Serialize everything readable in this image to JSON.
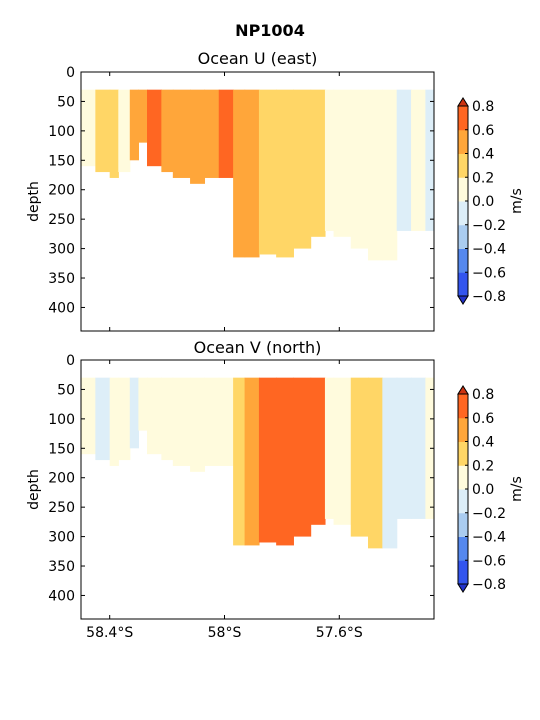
{
  "figure": {
    "suptitle": "NP1004"
  },
  "colors": {
    "levels": [
      -0.8,
      -0.6,
      -0.4,
      -0.2,
      0.0,
      0.2,
      0.4,
      0.6,
      0.8
    ],
    "bands": [
      "#3355ee",
      "#5588ee",
      "#aaccf0",
      "#ddeef8",
      "#fffbdd",
      "#ffd666",
      "#ffa63a",
      "#ff6622"
    ],
    "under": "#2233cc",
    "over": "#cc3311"
  },
  "chart_data": [
    {
      "type": "heatmap",
      "title": "Ocean U (east)",
      "ylabel": "depth",
      "xlabel": "",
      "ylim": [
        440,
        0
      ],
      "yticks": [
        0,
        50,
        100,
        150,
        200,
        250,
        300,
        350,
        400
      ],
      "xlim": [
        -58.5,
        -57.27
      ],
      "xticks": [
        -58.4,
        -58.0,
        -57.6
      ],
      "xtick_labels": [],
      "colorbar": {
        "label": "m/s",
        "ticks": [
          "0.8",
          "0.6",
          "0.4",
          "0.2",
          "0.0",
          "−0.2",
          "−0.4",
          "−0.6",
          "−0.8"
        ]
      },
      "top_depth": 30,
      "cells": [
        {
          "x0": -58.5,
          "x1": -58.45,
          "ymax": 160,
          "v": 0.1
        },
        {
          "x0": -58.45,
          "x1": -58.4,
          "ymax": 170,
          "v": 0.3
        },
        {
          "x0": -58.4,
          "x1": -58.37,
          "ymax": 180,
          "v": 0.3
        },
        {
          "x0": -58.37,
          "x1": -58.33,
          "ymax": 170,
          "v": 0.1
        },
        {
          "x0": -58.33,
          "x1": -58.3,
          "ymax": 150,
          "v": 0.5
        },
        {
          "x0": -58.3,
          "x1": -58.27,
          "ymax": 120,
          "v": 0.5
        },
        {
          "x0": -58.27,
          "x1": -58.22,
          "ymax": 160,
          "v": 0.6
        },
        {
          "x0": -58.22,
          "x1": -58.18,
          "ymax": 170,
          "v": 0.5
        },
        {
          "x0": -58.18,
          "x1": -58.12,
          "ymax": 180,
          "v": 0.5
        },
        {
          "x0": -58.12,
          "x1": -58.07,
          "ymax": 190,
          "v": 0.5
        },
        {
          "x0": -58.07,
          "x1": -58.02,
          "ymax": 180,
          "v": 0.5
        },
        {
          "x0": -58.02,
          "x1": -57.97,
          "ymax": 180,
          "v": 0.6
        },
        {
          "x0": -57.97,
          "x1": -57.93,
          "ymax": 315,
          "v": 0.5
        },
        {
          "x0": -57.93,
          "x1": -57.88,
          "ymax": 315,
          "v": 0.4
        },
        {
          "x0": -57.88,
          "x1": -57.82,
          "ymax": 310,
          "v": 0.3
        },
        {
          "x0": -57.82,
          "x1": -57.76,
          "ymax": 315,
          "v": 0.3
        },
        {
          "x0": -57.76,
          "x1": -57.7,
          "ymax": 300,
          "v": 0.3
        },
        {
          "x0": -57.7,
          "x1": -57.65,
          "ymax": 280,
          "v": 0.3
        },
        {
          "x0": -57.65,
          "x1": -57.62,
          "ymax": 270,
          "v": 0.1
        },
        {
          "x0": -57.62,
          "x1": -57.56,
          "ymax": 280,
          "v": 0.1
        },
        {
          "x0": -57.56,
          "x1": -57.5,
          "ymax": 300,
          "v": 0.1
        },
        {
          "x0": -57.5,
          "x1": -57.45,
          "ymax": 320,
          "v": 0.1
        },
        {
          "x0": -57.45,
          "x1": -57.4,
          "ymax": 320,
          "v": 0.1
        },
        {
          "x0": -57.4,
          "x1": -57.35,
          "ymax": 270,
          "v": -0.1
        },
        {
          "x0": -57.35,
          "x1": -57.3,
          "ymax": 270,
          "v": 0.1
        },
        {
          "x0": -57.3,
          "x1": -57.27,
          "ymax": 270,
          "v": -0.1
        }
      ]
    },
    {
      "type": "heatmap",
      "title": "Ocean V (north)",
      "ylabel": "depth",
      "xlabel": "",
      "ylim": [
        440,
        0
      ],
      "yticks": [
        0,
        50,
        100,
        150,
        200,
        250,
        300,
        350,
        400
      ],
      "xlim": [
        -58.5,
        -57.27
      ],
      "xticks": [
        -58.4,
        -58.0,
        -57.6
      ],
      "xtick_labels": [
        "58.4°S",
        "58°S",
        "57.6°S"
      ],
      "colorbar": {
        "label": "m/s",
        "ticks": [
          "0.8",
          "0.6",
          "0.4",
          "0.2",
          "0.0",
          "−0.2",
          "−0.4",
          "−0.6",
          "−0.8"
        ]
      },
      "top_depth": 30,
      "cells": [
        {
          "x0": -58.5,
          "x1": -58.45,
          "ymax": 160,
          "v": 0.1
        },
        {
          "x0": -58.45,
          "x1": -58.4,
          "ymax": 170,
          "v": -0.1
        },
        {
          "x0": -58.4,
          "x1": -58.37,
          "ymax": 180,
          "v": 0.1
        },
        {
          "x0": -58.37,
          "x1": -58.33,
          "ymax": 170,
          "v": 0.1
        },
        {
          "x0": -58.33,
          "x1": -58.3,
          "ymax": 150,
          "v": -0.1
        },
        {
          "x0": -58.3,
          "x1": -58.27,
          "ymax": 120,
          "v": 0.1
        },
        {
          "x0": -58.27,
          "x1": -58.22,
          "ymax": 160,
          "v": 0.1
        },
        {
          "x0": -58.22,
          "x1": -58.18,
          "ymax": 170,
          "v": 0.1
        },
        {
          "x0": -58.18,
          "x1": -58.12,
          "ymax": 180,
          "v": 0.1
        },
        {
          "x0": -58.12,
          "x1": -58.07,
          "ymax": 190,
          "v": 0.1
        },
        {
          "x0": -58.07,
          "x1": -58.02,
          "ymax": 180,
          "v": 0.1
        },
        {
          "x0": -58.02,
          "x1": -57.97,
          "ymax": 180,
          "v": 0.1
        },
        {
          "x0": -57.97,
          "x1": -57.93,
          "ymax": 315,
          "v": 0.3
        },
        {
          "x0": -57.93,
          "x1": -57.88,
          "ymax": 315,
          "v": 0.5
        },
        {
          "x0": -57.88,
          "x1": -57.82,
          "ymax": 310,
          "v": 0.7
        },
        {
          "x0": -57.82,
          "x1": -57.76,
          "ymax": 315,
          "v": 0.7
        },
        {
          "x0": -57.76,
          "x1": -57.7,
          "ymax": 300,
          "v": 0.7
        },
        {
          "x0": -57.7,
          "x1": -57.65,
          "ymax": 280,
          "v": 0.7
        },
        {
          "x0": -57.65,
          "x1": -57.62,
          "ymax": 270,
          "v": 0.1
        },
        {
          "x0": -57.62,
          "x1": -57.56,
          "ymax": 280,
          "v": 0.1
        },
        {
          "x0": -57.56,
          "x1": -57.5,
          "ymax": 300,
          "v": 0.3
        },
        {
          "x0": -57.5,
          "x1": -57.45,
          "ymax": 320,
          "v": 0.3
        },
        {
          "x0": -57.45,
          "x1": -57.4,
          "ymax": 320,
          "v": -0.1
        },
        {
          "x0": -57.4,
          "x1": -57.35,
          "ymax": 270,
          "v": -0.1
        },
        {
          "x0": -57.35,
          "x1": -57.3,
          "ymax": 270,
          "v": -0.1
        },
        {
          "x0": -57.3,
          "x1": -57.27,
          "ymax": 270,
          "v": 0.1
        }
      ]
    }
  ]
}
